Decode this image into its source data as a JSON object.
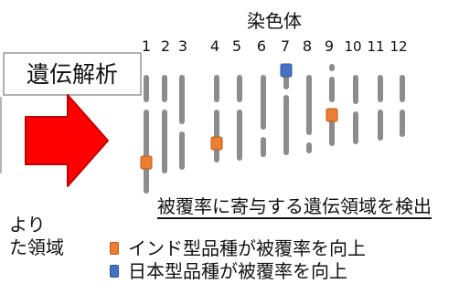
{
  "header": {
    "chromosome_label": "染色体",
    "analysis_label": "遺伝解析"
  },
  "chromosomes": {
    "numbers": [
      "1",
      "2",
      "3",
      "4",
      "5",
      "6",
      "7",
      "8",
      "9",
      "10",
      "11",
      "12"
    ],
    "markers": [
      {
        "chromosome": "1",
        "type": "indica"
      },
      {
        "chromosome": "4",
        "type": "indica"
      },
      {
        "chromosome": "7",
        "type": "japonica"
      },
      {
        "chromosome": "9",
        "type": "indica"
      }
    ]
  },
  "result_title": "被覆率に寄与する遺伝領域を検出",
  "legend": [
    {
      "id": "indica",
      "text": "インド型品種が被覆率を向上",
      "color": "#ED7D31"
    },
    {
      "id": "japonica",
      "text": "日本型品種が被覆率を向上",
      "color": "#4472C4"
    }
  ],
  "left_fragments": {
    "line1": "より",
    "line2": "た領域"
  },
  "colors": {
    "arrow_fill": "#FF0000",
    "arrow_stroke": "#C00000",
    "chromosome": "#8C8C8C"
  }
}
